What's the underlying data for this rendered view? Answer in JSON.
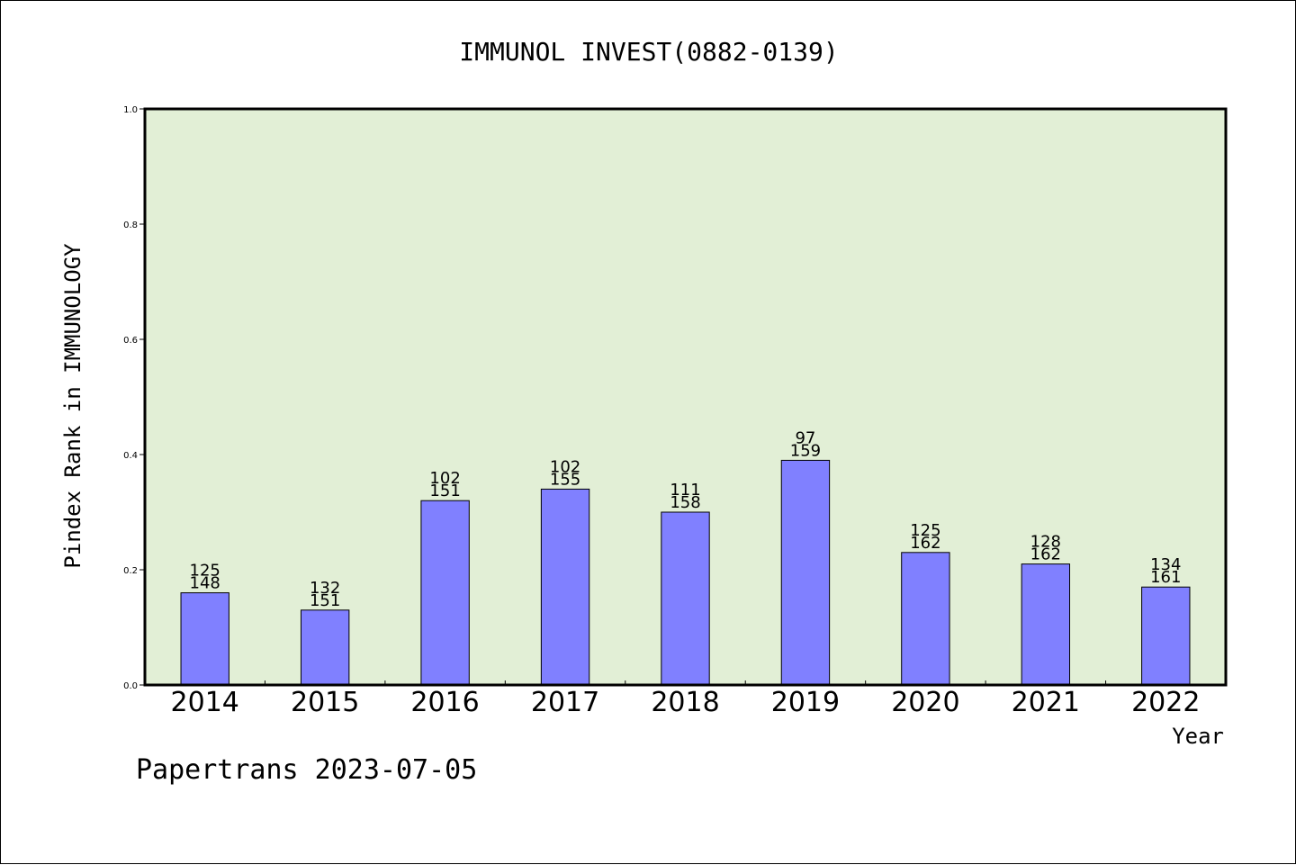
{
  "chart_data": {
    "type": "bar",
    "title": "IMMUNOL INVEST(0882-0139)",
    "ylabel": "Pindex Rank in IMMUNOLOGY",
    "xlabel": "Year",
    "ylim": [
      0,
      1.0
    ],
    "yticks": [
      "0.0",
      "0.2",
      "0.4",
      "0.6",
      "0.8",
      "1.0"
    ],
    "categories": [
      "2014",
      "2015",
      "2016",
      "2017",
      "2018",
      "2019",
      "2020",
      "2021",
      "2022"
    ],
    "values": [
      0.16,
      0.13,
      0.32,
      0.34,
      0.3,
      0.39,
      0.23,
      0.21,
      0.17
    ],
    "label_top": [
      "125",
      "132",
      "102",
      "102",
      "111",
      "97",
      "125",
      "128",
      "134"
    ],
    "label_bottom": [
      "148",
      "151",
      "151",
      "155",
      "158",
      "159",
      "162",
      "162",
      "161"
    ],
    "grid": false,
    "colors": {
      "plot_bg": "#e2efd6",
      "bar_fill": "#8080ff",
      "bar_stroke": "#000000"
    }
  },
  "footer": "Papertrans 2023-07-05"
}
